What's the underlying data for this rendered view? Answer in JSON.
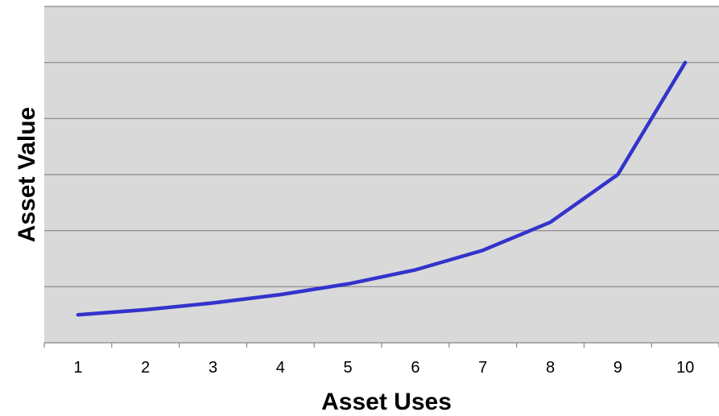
{
  "chart_data": {
    "type": "line",
    "title": "",
    "xlabel": "Asset Uses",
    "ylabel": "Asset Value",
    "categories": [
      "1",
      "2",
      "3",
      "4",
      "5",
      "6",
      "7",
      "8",
      "9",
      "10"
    ],
    "series": [
      {
        "values": [
          0.5,
          0.59,
          0.71,
          0.86,
          1.05,
          1.3,
          1.65,
          2.15,
          3.0,
          5.0
        ]
      }
    ],
    "ylim": [
      0,
      6
    ],
    "y_gridlines": [
      1,
      2,
      3,
      4,
      5,
      6
    ],
    "y_tick_labels_shown": false,
    "grid": true,
    "legend": "none",
    "colors": {
      "plot_background": "#d9d9d9",
      "line": "#3333cc",
      "gridline": "#868686"
    }
  }
}
